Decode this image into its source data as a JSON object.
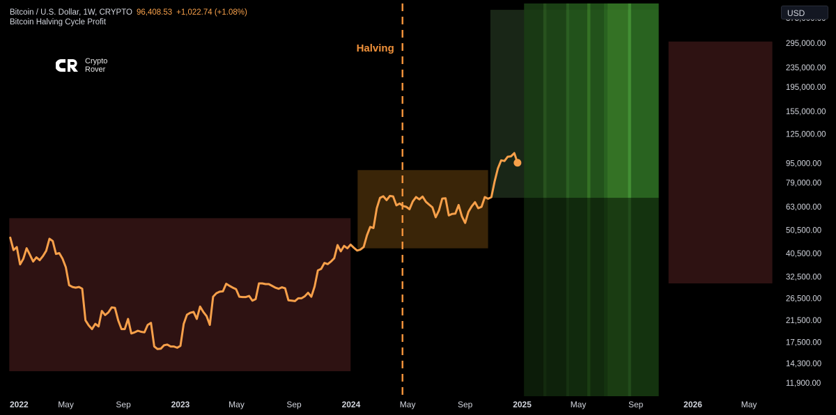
{
  "header": {
    "symbol": "Bitcoin / U.S. Dollar, 1W, CRYPTO",
    "last_price": "96,408.53",
    "change": "+1,022.74 (+1.08%)",
    "indicator": "Bitcoin Halving Cycle Profit"
  },
  "logo": {
    "line1": "Crypto",
    "line2": "Rover"
  },
  "currency_button": "USD",
  "colors": {
    "line": "#f7a04a",
    "halving": "#f0913a",
    "red_zone": "#2e1212",
    "orange_zone": "#3a2508",
    "green_zone_light": "#3b8d2a",
    "green_zone_dark": "#0e2a0b"
  },
  "chart_data": {
    "type": "line",
    "y_scale": "log",
    "ylim": [
      10500,
      430000
    ],
    "xlim": [
      "2022-01-01",
      "2026-07-01"
    ],
    "y_ticks": [
      {
        "value": 375000,
        "label": "375,000.00"
      },
      {
        "value": 295000,
        "label": "295,000.00"
      },
      {
        "value": 235000,
        "label": "235,000.00"
      },
      {
        "value": 195000,
        "label": "195,000.00"
      },
      {
        "value": 155000,
        "label": "155,000.00"
      },
      {
        "value": 125000,
        "label": "125,000.00"
      },
      {
        "value": 95000,
        "label": "95,000.00"
      },
      {
        "value": 79000,
        "label": "79,000.00"
      },
      {
        "value": 63000,
        "label": "63,000.00"
      },
      {
        "value": 50500,
        "label": "50,500.00"
      },
      {
        "value": 40500,
        "label": "40,500.00"
      },
      {
        "value": 32500,
        "label": "32,500.00"
      },
      {
        "value": 26500,
        "label": "26,500.00"
      },
      {
        "value": 21500,
        "label": "21,500.00"
      },
      {
        "value": 17500,
        "label": "17,500.00"
      },
      {
        "value": 14300,
        "label": "14,300.00"
      },
      {
        "value": 11900,
        "label": "11,900.00"
      }
    ],
    "x_ticks": [
      {
        "date": "2022-01-01",
        "label": "2022",
        "major": true
      },
      {
        "date": "2022-05-01",
        "label": "May",
        "major": false
      },
      {
        "date": "2022-09-01",
        "label": "Sep",
        "major": false
      },
      {
        "date": "2023-01-01",
        "label": "2023",
        "major": true
      },
      {
        "date": "2023-05-01",
        "label": "May",
        "major": false
      },
      {
        "date": "2023-09-01",
        "label": "Sep",
        "major": false
      },
      {
        "date": "2024-01-01",
        "label": "2024",
        "major": true
      },
      {
        "date": "2024-05-01",
        "label": "May",
        "major": false
      },
      {
        "date": "2024-09-01",
        "label": "Sep",
        "major": false
      },
      {
        "date": "2025-01-01",
        "label": "2025",
        "major": true
      },
      {
        "date": "2025-05-01",
        "label": "May",
        "major": false
      },
      {
        "date": "2025-09-01",
        "label": "Sep",
        "major": false
      },
      {
        "date": "2026-01-01",
        "label": "2026",
        "major": true
      },
      {
        "date": "2026-05-01",
        "label": "May",
        "major": false
      }
    ],
    "halving": {
      "date": "2024-04-20",
      "label": "Halving"
    },
    "zones": [
      {
        "kind": "red",
        "x0": "2021-12-31",
        "x1": "2023-12-31",
        "y0": 13300,
        "y1": 56500
      },
      {
        "kind": "orange",
        "x0": "2024-01-15",
        "x1": "2024-10-20",
        "y0": 42500,
        "y1": 89000
      },
      {
        "kind": "green-box",
        "x0": "2024-10-25",
        "x1": "2025-10-20",
        "y0": 68500,
        "y1": 405000
      },
      {
        "kind": "red",
        "x0": "2025-11-10",
        "x1": "2026-06-20",
        "y0": 30500,
        "y1": 300000
      }
    ],
    "green_stripes": {
      "x0": "2025-01-05",
      "x1": "2025-10-20",
      "y0": 10500,
      "y1": 430000,
      "bands": [
        {
          "x0": "2025-01-05",
          "x1": "2025-02-15",
          "tone": 0
        },
        {
          "x0": "2025-02-15",
          "x1": "2025-02-22",
          "tone": 1
        },
        {
          "x0": "2025-02-22",
          "x1": "2025-04-05",
          "tone": 2
        },
        {
          "x0": "2025-04-05",
          "x1": "2025-04-12",
          "tone": 3
        },
        {
          "x0": "2025-04-12",
          "x1": "2025-05-20",
          "tone": 4
        },
        {
          "x0": "2025-05-20",
          "x1": "2025-05-27",
          "tone": 5
        },
        {
          "x0": "2025-05-27",
          "x1": "2025-06-25",
          "tone": 4
        },
        {
          "x0": "2025-06-25",
          "x1": "2025-07-02",
          "tone": 6
        },
        {
          "x0": "2025-07-02",
          "x1": "2025-08-15",
          "tone": 5
        },
        {
          "x0": "2025-08-15",
          "x1": "2025-08-22",
          "tone": 7
        },
        {
          "x0": "2025-08-22",
          "x1": "2025-10-20",
          "tone": 6
        }
      ]
    },
    "series": [
      {
        "values": [
          [
            "2022-01-02",
            47000
          ],
          [
            "2022-01-09",
            41800
          ],
          [
            "2022-01-16",
            43000
          ],
          [
            "2022-01-23",
            36500
          ],
          [
            "2022-01-30",
            38500
          ],
          [
            "2022-02-06",
            42500
          ],
          [
            "2022-02-13",
            40000
          ],
          [
            "2022-02-20",
            37500
          ],
          [
            "2022-02-27",
            39000
          ],
          [
            "2022-03-06",
            38000
          ],
          [
            "2022-03-13",
            39500
          ],
          [
            "2022-03-20",
            41500
          ],
          [
            "2022-03-27",
            46500
          ],
          [
            "2022-04-03",
            45500
          ],
          [
            "2022-04-10",
            40300
          ],
          [
            "2022-04-17",
            40600
          ],
          [
            "2022-04-24",
            38500
          ],
          [
            "2022-05-01",
            35500
          ],
          [
            "2022-05-08",
            30000
          ],
          [
            "2022-05-15",
            29500
          ],
          [
            "2022-05-22",
            29300
          ],
          [
            "2022-05-29",
            29500
          ],
          [
            "2022-06-05",
            29000
          ],
          [
            "2022-06-12",
            21500
          ],
          [
            "2022-06-19",
            20500
          ],
          [
            "2022-06-26",
            19800
          ],
          [
            "2022-07-03",
            20800
          ],
          [
            "2022-07-10",
            20300
          ],
          [
            "2022-07-17",
            23500
          ],
          [
            "2022-07-24",
            22600
          ],
          [
            "2022-07-31",
            23200
          ],
          [
            "2022-08-07",
            24300
          ],
          [
            "2022-08-14",
            24200
          ],
          [
            "2022-08-21",
            21500
          ],
          [
            "2022-08-28",
            19800
          ],
          [
            "2022-09-04",
            19800
          ],
          [
            "2022-09-11",
            21800
          ],
          [
            "2022-09-18",
            19000
          ],
          [
            "2022-09-25",
            19200
          ],
          [
            "2022-10-02",
            19500
          ],
          [
            "2022-10-09",
            19300
          ],
          [
            "2022-10-16",
            19200
          ],
          [
            "2022-10-23",
            20600
          ],
          [
            "2022-10-30",
            21000
          ],
          [
            "2022-11-06",
            16800
          ],
          [
            "2022-11-13",
            16400
          ],
          [
            "2022-11-20",
            16450
          ],
          [
            "2022-11-27",
            17000
          ],
          [
            "2022-12-04",
            17100
          ],
          [
            "2022-12-11",
            16800
          ],
          [
            "2022-12-18",
            16800
          ],
          [
            "2022-12-25",
            16600
          ],
          [
            "2023-01-01",
            16900
          ],
          [
            "2023-01-08",
            20800
          ],
          [
            "2023-01-15",
            22700
          ],
          [
            "2023-01-22",
            23100
          ],
          [
            "2023-01-29",
            23300
          ],
          [
            "2023-02-05",
            21800
          ],
          [
            "2023-02-12",
            24500
          ],
          [
            "2023-02-19",
            23300
          ],
          [
            "2023-02-26",
            22400
          ],
          [
            "2023-03-05",
            20600
          ],
          [
            "2023-03-12",
            26900
          ],
          [
            "2023-03-19",
            27800
          ],
          [
            "2023-03-26",
            28200
          ],
          [
            "2023-04-02",
            28300
          ],
          [
            "2023-04-09",
            30400
          ],
          [
            "2023-04-16",
            29800
          ],
          [
            "2023-04-23",
            29300
          ],
          [
            "2023-04-30",
            28900
          ],
          [
            "2023-05-07",
            26900
          ],
          [
            "2023-05-14",
            26800
          ],
          [
            "2023-05-21",
            26800
          ],
          [
            "2023-05-28",
            27100
          ],
          [
            "2023-06-04",
            25900
          ],
          [
            "2023-06-11",
            26300
          ],
          [
            "2023-06-18",
            30500
          ],
          [
            "2023-06-25",
            30500
          ],
          [
            "2023-07-02",
            30300
          ],
          [
            "2023-07-09",
            30300
          ],
          [
            "2023-07-16",
            29800
          ],
          [
            "2023-07-23",
            29300
          ],
          [
            "2023-07-30",
            29000
          ],
          [
            "2023-08-06",
            29400
          ],
          [
            "2023-08-13",
            29100
          ],
          [
            "2023-08-20",
            26000
          ],
          [
            "2023-08-27",
            25900
          ],
          [
            "2023-09-03",
            25800
          ],
          [
            "2023-09-10",
            26500
          ],
          [
            "2023-09-17",
            26500
          ],
          [
            "2023-09-24",
            27000
          ],
          [
            "2023-10-01",
            27900
          ],
          [
            "2023-10-08",
            26900
          ],
          [
            "2023-10-15",
            29600
          ],
          [
            "2023-10-22",
            34500
          ],
          [
            "2023-10-29",
            35000
          ],
          [
            "2023-11-05",
            37000
          ],
          [
            "2023-11-12",
            36600
          ],
          [
            "2023-11-19",
            37500
          ],
          [
            "2023-11-26",
            38700
          ],
          [
            "2023-12-03",
            43800
          ],
          [
            "2023-12-10",
            41300
          ],
          [
            "2023-12-17",
            43500
          ],
          [
            "2023-12-24",
            42500
          ],
          [
            "2023-12-31",
            44000
          ],
          [
            "2024-01-07",
            42700
          ],
          [
            "2024-01-14",
            41600
          ],
          [
            "2024-01-21",
            42000
          ],
          [
            "2024-01-28",
            43000
          ],
          [
            "2024-02-04",
            48000
          ],
          [
            "2024-02-11",
            52000
          ],
          [
            "2024-02-18",
            51500
          ],
          [
            "2024-02-25",
            62000
          ],
          [
            "2024-03-03",
            68500
          ],
          [
            "2024-03-10",
            69500
          ],
          [
            "2024-03-17",
            67000
          ],
          [
            "2024-03-24",
            69700
          ],
          [
            "2024-03-31",
            69400
          ],
          [
            "2024-04-07",
            63800
          ],
          [
            "2024-04-14",
            64900
          ],
          [
            "2024-04-21",
            63400
          ],
          [
            "2024-04-28",
            62900
          ],
          [
            "2024-05-05",
            61500
          ],
          [
            "2024-05-12",
            66200
          ],
          [
            "2024-05-19",
            69000
          ],
          [
            "2024-05-26",
            67500
          ],
          [
            "2024-06-02",
            69300
          ],
          [
            "2024-06-09",
            66000
          ],
          [
            "2024-06-16",
            64200
          ],
          [
            "2024-06-23",
            62600
          ],
          [
            "2024-06-30",
            57000
          ],
          [
            "2024-07-07",
            60800
          ],
          [
            "2024-07-14",
            68000
          ],
          [
            "2024-07-21",
            68200
          ],
          [
            "2024-07-28",
            58000
          ],
          [
            "2024-08-04",
            58800
          ],
          [
            "2024-08-11",
            59000
          ],
          [
            "2024-08-18",
            64000
          ],
          [
            "2024-08-25",
            57500
          ],
          [
            "2024-09-01",
            54000
          ],
          [
            "2024-09-08",
            60000
          ],
          [
            "2024-09-15",
            63200
          ],
          [
            "2024-09-22",
            65700
          ],
          [
            "2024-09-29",
            62100
          ],
          [
            "2024-10-06",
            62900
          ],
          [
            "2024-10-13",
            69000
          ],
          [
            "2024-10-20",
            67900
          ],
          [
            "2024-10-27",
            68900
          ],
          [
            "2024-11-03",
            80000
          ],
          [
            "2024-11-10",
            90500
          ],
          [
            "2024-11-17",
            97600
          ],
          [
            "2024-11-24",
            97000
          ],
          [
            "2024-12-01",
            101000
          ],
          [
            "2024-12-08",
            101400
          ],
          [
            "2024-12-15",
            104500
          ],
          [
            "2024-12-22",
            95400
          ]
        ]
      }
    ],
    "last_point": [
      "2024-12-22",
      95400
    ]
  }
}
